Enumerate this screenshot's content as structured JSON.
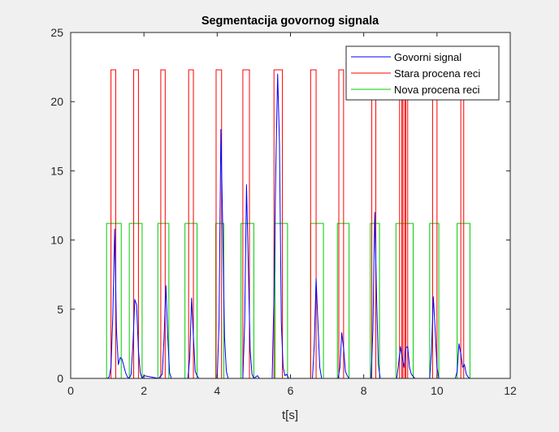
{
  "chart_data": {
    "type": "line",
    "title": "Segmentacija govornog signala",
    "xlabel": "t[s]",
    "ylabel": "",
    "xlim": [
      0,
      12
    ],
    "ylim": [
      0,
      25
    ],
    "xticks": [
      0,
      2,
      4,
      6,
      8,
      10,
      12
    ],
    "yticks": [
      0,
      5,
      10,
      15,
      20,
      25
    ],
    "grid": false,
    "legend_position": "top-right",
    "colors": {
      "figure_bg": "#f0f0f0",
      "axes_bg": "#ffffff",
      "axes_edge": "#262626",
      "signal": "#0000ff",
      "old": "#ff0000",
      "new": "#00cc00"
    },
    "series": [
      {
        "name": "Govorni signal",
        "color": "#0000ff",
        "x": [
          0.0,
          1.0,
          1.05,
          1.1,
          1.15,
          1.2,
          1.25,
          1.3,
          1.35,
          1.4,
          1.45,
          1.5,
          1.55,
          1.6,
          1.65,
          1.7,
          1.75,
          1.8,
          1.85,
          1.9,
          1.95,
          2.0,
          2.4,
          2.5,
          2.55,
          2.6,
          2.65,
          2.7,
          2.75,
          3.2,
          3.25,
          3.3,
          3.35,
          3.4,
          3.45,
          3.5,
          4.0,
          4.05,
          4.1,
          4.15,
          4.2,
          4.25,
          4.3,
          4.7,
          4.75,
          4.8,
          4.85,
          4.9,
          4.95,
          5.0,
          5.05,
          5.1,
          5.15,
          5.5,
          5.55,
          5.6,
          5.65,
          5.7,
          5.75,
          5.8,
          5.85,
          5.9,
          5.95,
          6.6,
          6.65,
          6.7,
          6.75,
          6.8,
          6.85,
          7.3,
          7.35,
          7.4,
          7.45,
          7.5,
          7.55,
          7.6,
          8.2,
          8.25,
          8.3,
          8.35,
          8.4,
          8.45,
          8.9,
          8.95,
          9.0,
          9.05,
          9.1,
          9.15,
          9.2,
          9.25,
          9.3,
          9.4,
          9.8,
          9.85,
          9.9,
          9.95,
          10.0,
          10.05,
          10.5,
          10.55,
          10.6,
          10.65,
          10.7,
          10.75,
          10.8,
          10.85,
          10.9,
          12.0
        ],
        "y": [
          0.0,
          0.0,
          0.1,
          0.8,
          4.5,
          10.8,
          3.5,
          1.0,
          1.5,
          1.4,
          0.9,
          0.4,
          0.1,
          0.0,
          0.3,
          2.5,
          5.7,
          5.3,
          2.0,
          0.4,
          0.0,
          0.2,
          0.0,
          0.3,
          3.0,
          6.7,
          3.0,
          0.4,
          0.0,
          0.0,
          1.5,
          5.8,
          3.0,
          0.5,
          0.2,
          0.0,
          0.0,
          4.0,
          18.0,
          11.0,
          3.0,
          0.5,
          0.0,
          0.0,
          4.0,
          14.0,
          8.0,
          2.0,
          0.3,
          0.0,
          0.1,
          0.2,
          0.0,
          0.0,
          6.0,
          15.2,
          22.0,
          17.0,
          4.0,
          0.8,
          0.2,
          0.3,
          0.0,
          0.0,
          2.5,
          7.2,
          4.0,
          0.8,
          0.0,
          0.0,
          0.8,
          3.3,
          2.2,
          0.5,
          0.2,
          0.0,
          0.0,
          3.5,
          12.0,
          6.0,
          1.0,
          0.0,
          0.0,
          1.0,
          2.3,
          1.5,
          0.8,
          2.2,
          2.3,
          0.8,
          0.3,
          0.0,
          0.0,
          2.0,
          5.9,
          3.5,
          0.8,
          0.0,
          0.0,
          0.5,
          2.5,
          1.8,
          0.8,
          1.0,
          0.3,
          0.1,
          0.0,
          0.0
        ]
      },
      {
        "name": "Stara procena reci",
        "color": "#ff0000",
        "level": 22.3,
        "segments": [
          [
            1.1,
            1.23
          ],
          [
            1.72,
            1.85
          ],
          [
            2.46,
            2.58
          ],
          [
            3.22,
            3.35
          ],
          [
            3.97,
            4.12
          ],
          [
            4.7,
            4.88
          ],
          [
            5.55,
            5.78
          ],
          [
            6.55,
            6.7
          ],
          [
            7.32,
            7.45
          ],
          [
            8.22,
            8.33
          ],
          [
            8.98,
            9.04
          ],
          [
            9.07,
            9.12
          ],
          [
            9.15,
            9.2
          ],
          [
            9.88,
            10.0
          ],
          [
            10.65,
            10.73
          ]
        ]
      },
      {
        "name": "Nova procena reci",
        "color": "#00cc00",
        "level": 11.2,
        "segments": [
          [
            0.98,
            1.38
          ],
          [
            1.6,
            1.95
          ],
          [
            2.38,
            2.68
          ],
          [
            3.12,
            3.45
          ],
          [
            3.96,
            4.18
          ],
          [
            4.65,
            5.0
          ],
          [
            5.58,
            5.92
          ],
          [
            6.55,
            6.9
          ],
          [
            7.28,
            7.6
          ],
          [
            8.18,
            8.43
          ],
          [
            8.88,
            9.35
          ],
          [
            9.8,
            10.05
          ],
          [
            10.55,
            10.9
          ]
        ]
      }
    ]
  }
}
